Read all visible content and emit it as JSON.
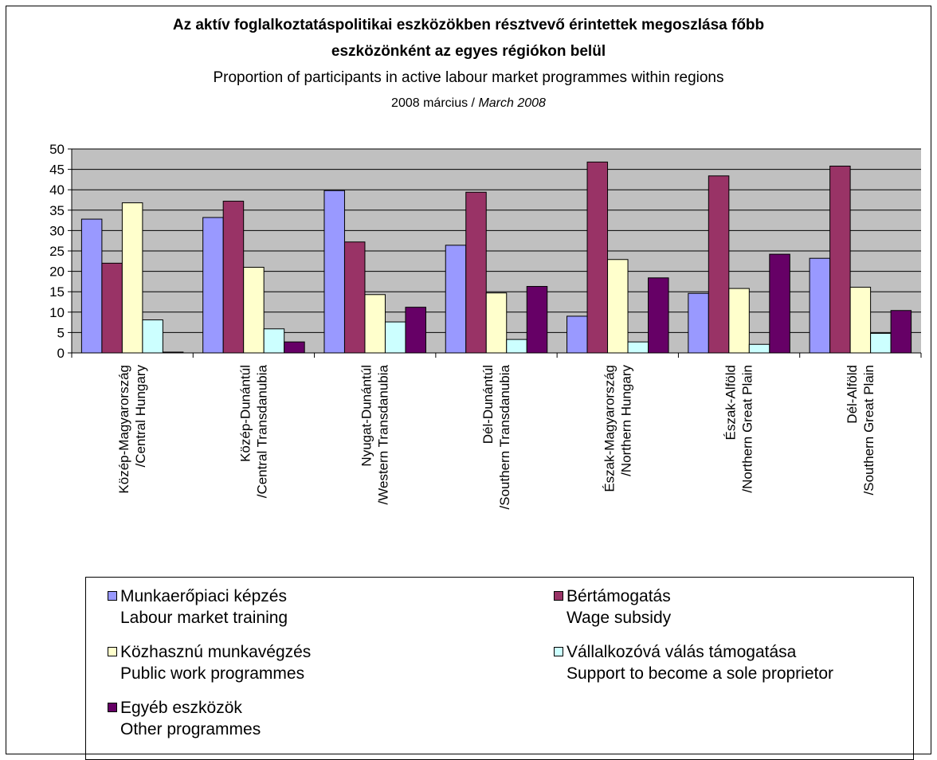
{
  "chart_data": {
    "type": "bar",
    "title": "Az aktív foglalkoztatáspolitikai eszközökben résztvevő érintettek megoszlása főbb",
    "title_line2": "eszközönként az egyes régiókon belül",
    "subtitle": "Proportion of participants in active labour market programmes within regions",
    "date_hu": "2008 március / ",
    "date_en": "March 2008",
    "ylim": [
      0,
      50
    ],
    "yticks": [
      "0",
      "5",
      "10",
      "15",
      "20",
      "25",
      "30",
      "35",
      "40",
      "45",
      "50"
    ],
    "grid": true,
    "legend_position": "bottom",
    "categories": [
      {
        "hu": "Közép-Magyarország",
        "en": "/Central Hungary"
      },
      {
        "hu": "Közép-Dunántúl",
        "en": "/Central Transdanubia"
      },
      {
        "hu": "Nyugat-Dunántúl",
        "en": "/Western Transdanubia"
      },
      {
        "hu": "Dél-Dunántúl",
        "en": "/Southern Transdanubia"
      },
      {
        "hu": "Észak-Magyarország",
        "en": "/Northern Hungary"
      },
      {
        "hu": "Észak-Alföld",
        "en": "/Northern Great Plain"
      },
      {
        "hu": "Dél-Alföld",
        "en": "/Southern Great Plain"
      }
    ],
    "series": [
      {
        "name": "Munkaerőpiaci képzés",
        "name_en": "Labour market training",
        "color": "#9999ff",
        "values": [
          32.8,
          33.2,
          39.8,
          26.4,
          9.0,
          14.6,
          23.2
        ]
      },
      {
        "name": "Bértámogatás",
        "name_en": "Wage subsidy",
        "color": "#993366",
        "values": [
          22.0,
          37.2,
          27.2,
          39.4,
          46.8,
          43.4,
          45.8
        ]
      },
      {
        "name": "Közhasznú munkavégzés",
        "name_en": "Public work programmes",
        "color": "#ffffcc",
        "values": [
          36.8,
          21.0,
          14.3,
          14.7,
          22.9,
          15.8,
          16.1
        ]
      },
      {
        "name": "Vállalkozóvá válás támogatása",
        "name_en": "Support to become a sole proprietor",
        "color": "#ccffff",
        "values": [
          8.1,
          5.9,
          7.6,
          3.3,
          2.7,
          2.1,
          4.8
        ]
      },
      {
        "name": "Egyéb eszközök",
        "name_en": "Other programmes",
        "color": "#660066",
        "values": [
          0.2,
          2.7,
          11.2,
          16.3,
          18.4,
          24.2,
          10.4
        ]
      }
    ]
  }
}
